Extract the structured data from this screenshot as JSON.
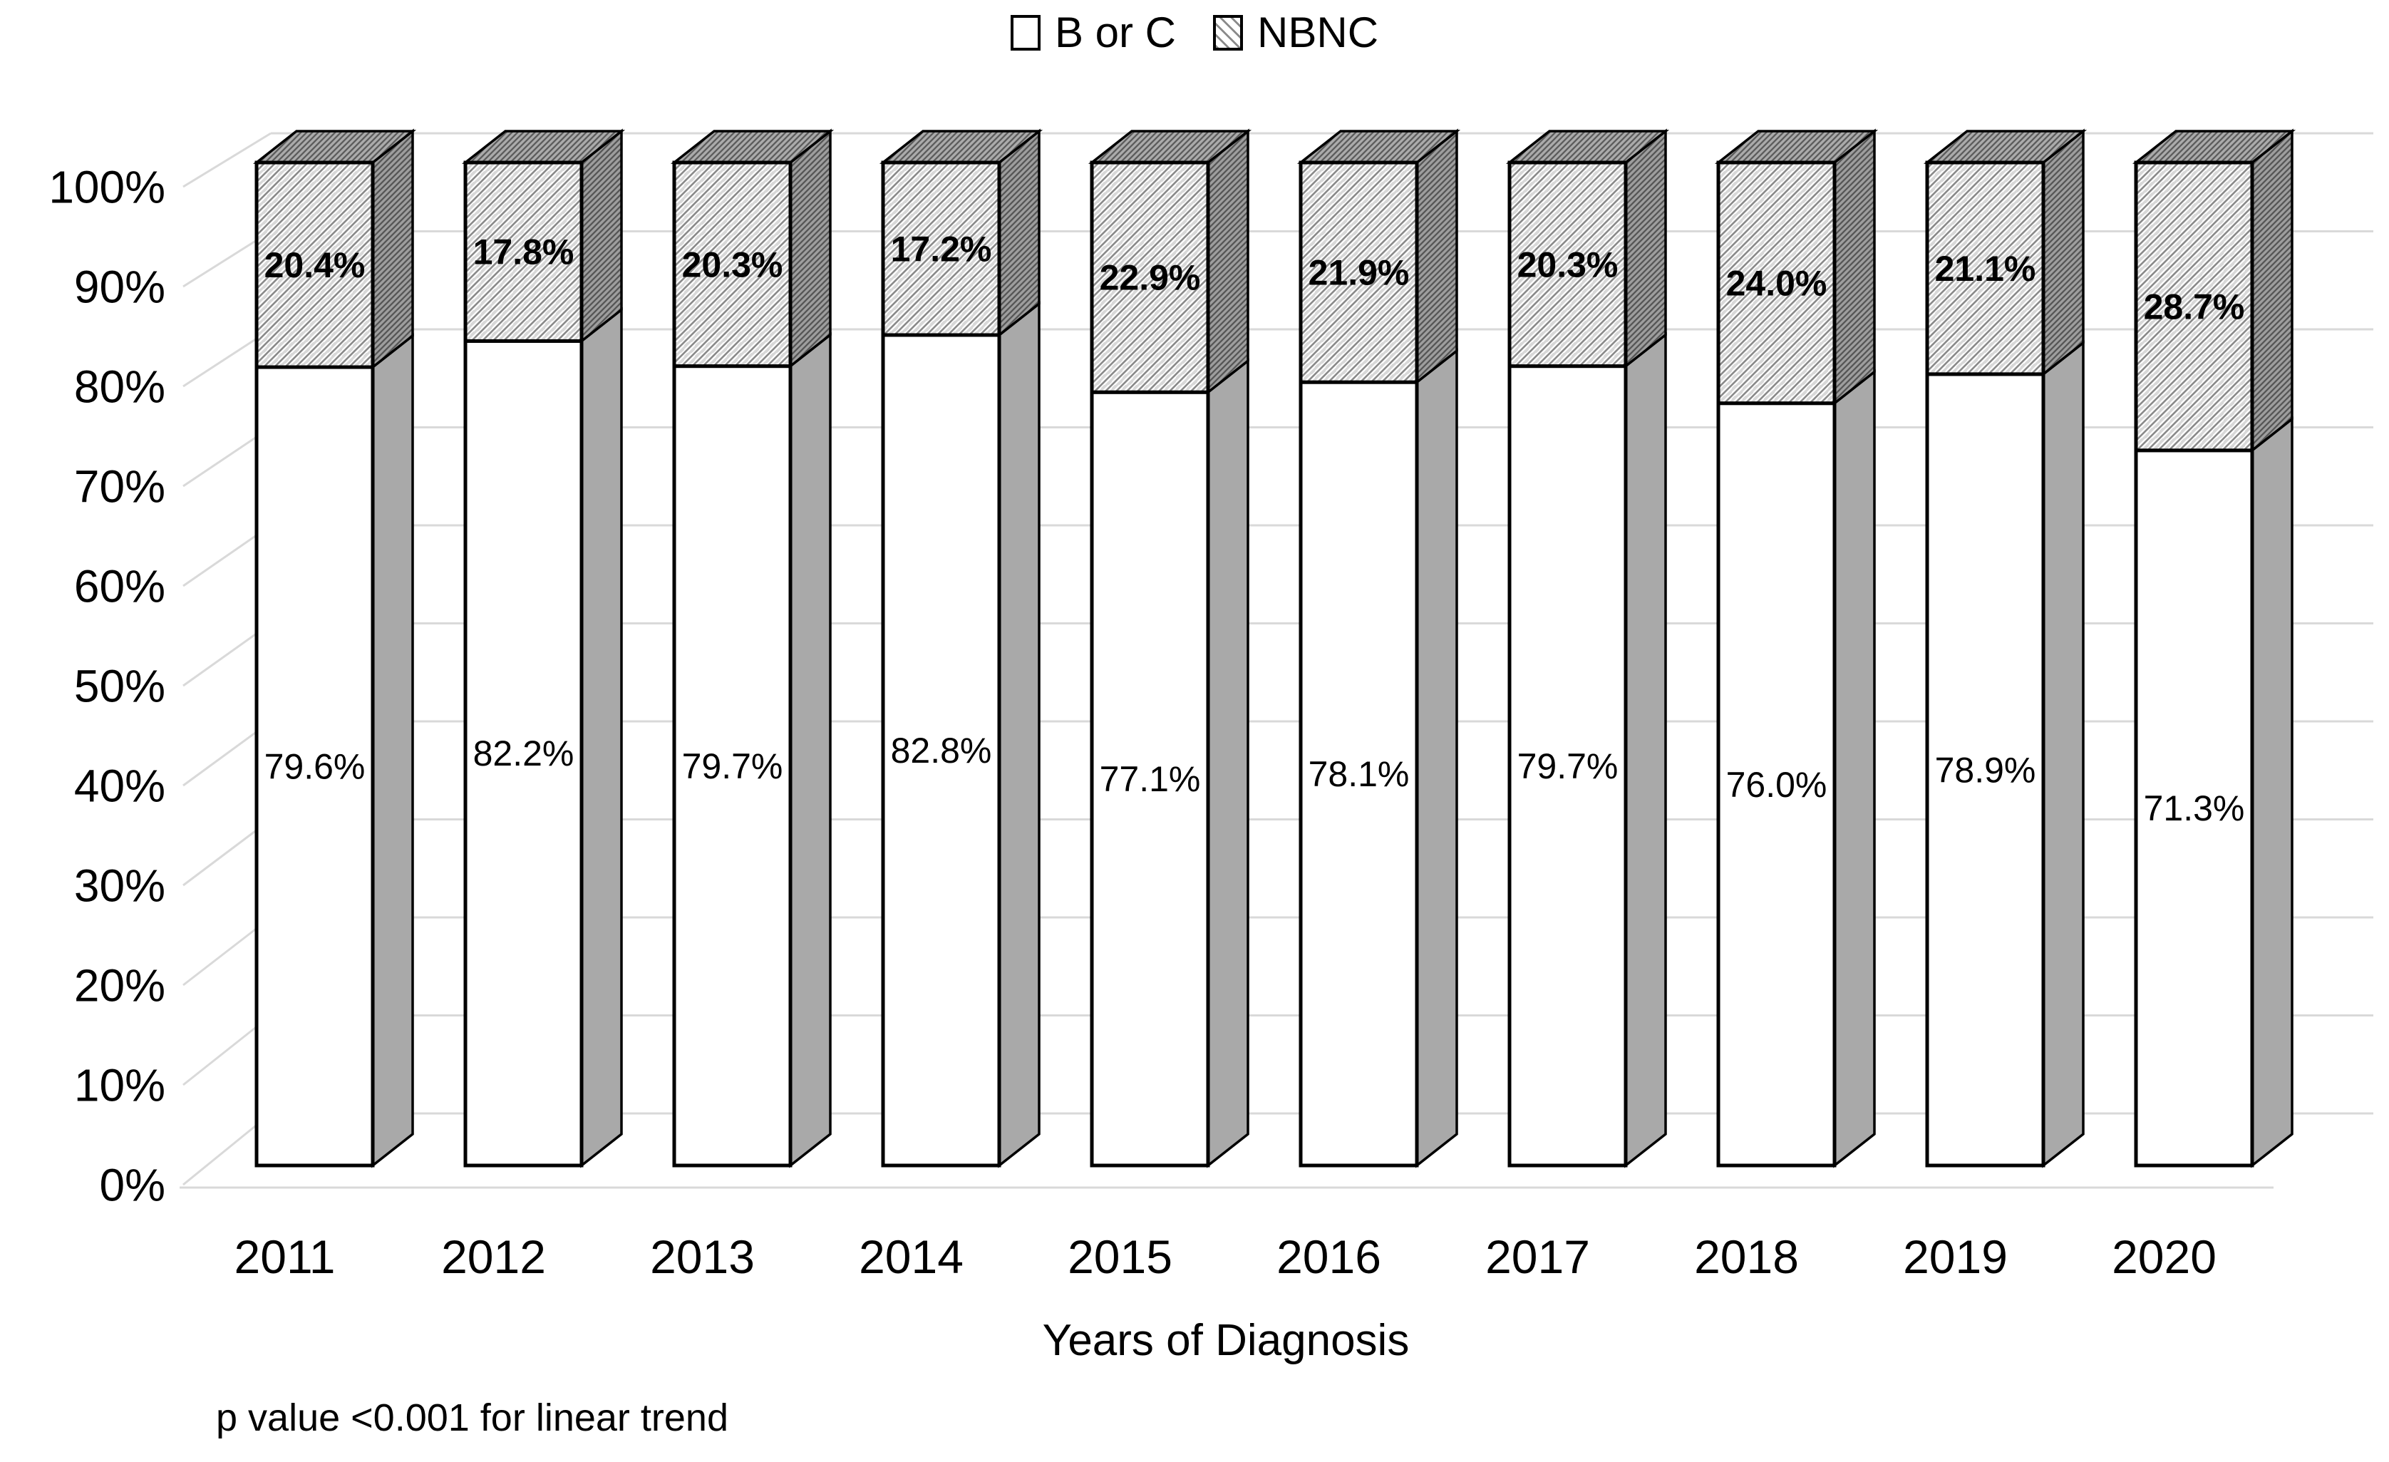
{
  "legend": {
    "items": [
      {
        "label": "B or C",
        "swatch": "white-square"
      },
      {
        "label": "NBNC",
        "swatch": "hatched-square"
      }
    ]
  },
  "footnote": "p value <0.001 for linear trend",
  "chart_data": {
    "type": "bar",
    "subtype": "stacked-100-percent-3d-column",
    "title": "",
    "xlabel": "Years of Diagnosis",
    "ylabel": "",
    "categories": [
      "2011",
      "2012",
      "2013",
      "2014",
      "2015",
      "2016",
      "2017",
      "2018",
      "2019",
      "2020"
    ],
    "series": [
      {
        "name": "B or C",
        "pattern": "solid-white",
        "values": [
          79.6,
          82.2,
          79.7,
          82.8,
          77.1,
          78.1,
          79.7,
          76.0,
          78.9,
          71.3
        ]
      },
      {
        "name": "NBNC",
        "pattern": "diagonal-hatch",
        "values": [
          20.4,
          17.8,
          20.3,
          17.2,
          22.9,
          21.9,
          20.3,
          24.0,
          21.1,
          28.7
        ]
      }
    ],
    "y_ticks": [
      0,
      10,
      20,
      30,
      40,
      50,
      60,
      70,
      80,
      90,
      100
    ],
    "y_tick_suffix": "%",
    "ylim": [
      0,
      100
    ],
    "grid": true,
    "legend_position": "top",
    "annotation": "p value <0.001 for linear trend",
    "colors": {
      "grid": "#d9d9d9",
      "outline": "#000000",
      "text": "#000000",
      "borc_front": "#ffffff",
      "borc_side": "#a9a9a9",
      "nbnc_hatch_line": "#8a8a8a",
      "nbnc_hatch_shadow": "#d8d8d8",
      "nbnc_side_bg": "#9e9e9e",
      "nbnc_top_bg": "#ababab",
      "dark_hatch_line": "#565656"
    }
  }
}
